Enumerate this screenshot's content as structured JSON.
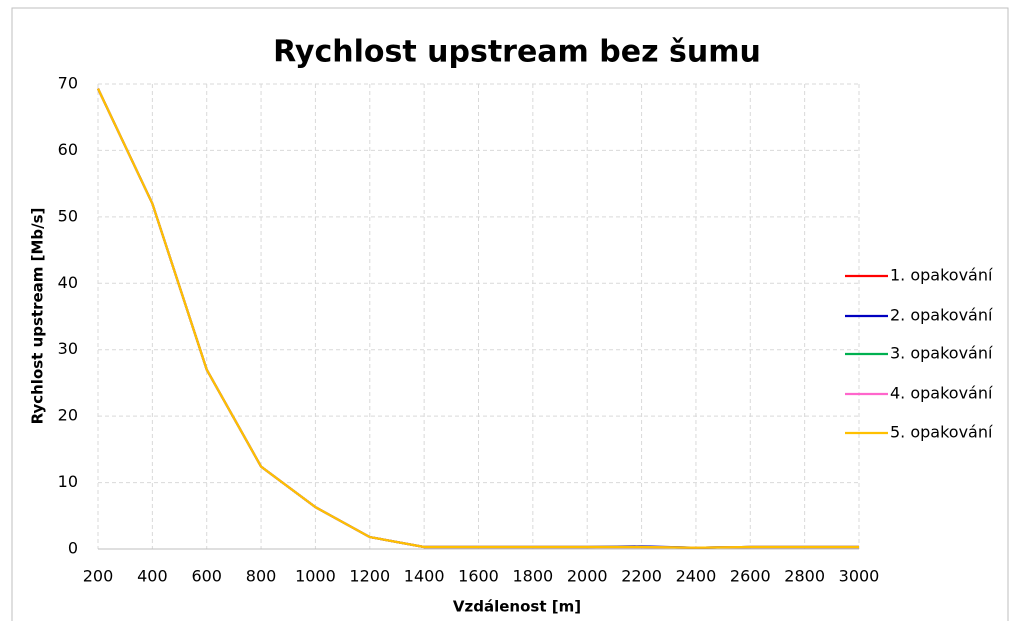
{
  "chart_data": {
    "type": "line",
    "title": "Rychlost upstream bez šumu",
    "xlabel": "Vzdálenost [m]",
    "ylabel": "Rychlost upstream [Mb/s]",
    "x": [
      200,
      400,
      600,
      800,
      1000,
      1200,
      1400,
      1600,
      1800,
      2000,
      2200,
      2400,
      2600,
      2800,
      3000
    ],
    "series": [
      {
        "name": "1. opakování",
        "color": "#ff0000",
        "values": [
          69.3,
          52,
          27,
          12.4,
          6.3,
          1.8,
          0.3,
          0.3,
          0.3,
          0.3,
          0.3,
          0.2,
          0.3,
          0.3,
          0.3
        ]
      },
      {
        "name": "2. opakování",
        "color": "#0000c0",
        "values": [
          69.3,
          52,
          27,
          12.4,
          6.3,
          1.8,
          0.3,
          0.3,
          0.3,
          0.3,
          0.4,
          0.2,
          0.3,
          0.3,
          0.3
        ]
      },
      {
        "name": "3. opakování",
        "color": "#00b050",
        "values": [
          69.3,
          52,
          27,
          12.4,
          6.3,
          1.8,
          0.3,
          0.3,
          0.3,
          0.3,
          0.3,
          0.2,
          0.3,
          0.3,
          0.3
        ]
      },
      {
        "name": "4. opakování",
        "color": "#ff66cc",
        "values": [
          69.3,
          52,
          27,
          12.4,
          6.3,
          1.8,
          0.3,
          0.3,
          0.3,
          0.3,
          0.3,
          0.2,
          0.3,
          0.3,
          0.3
        ]
      },
      {
        "name": "5. opakování",
        "color": "#ffc000",
        "values": [
          69.3,
          52,
          27,
          12.4,
          6.3,
          1.8,
          0.3,
          0.3,
          0.3,
          0.3,
          0.3,
          0.2,
          0.3,
          0.3,
          0.3
        ]
      }
    ],
    "xlim": [
      200,
      3000
    ],
    "xticks": [
      200,
      400,
      600,
      800,
      1000,
      1200,
      1400,
      1600,
      1800,
      2000,
      2200,
      2400,
      2600,
      2800,
      3000
    ],
    "ylim": [
      0,
      70
    ],
    "yticks": [
      0,
      10,
      20,
      30,
      40,
      50,
      60,
      70
    ],
    "grid": true,
    "legend": "right"
  }
}
